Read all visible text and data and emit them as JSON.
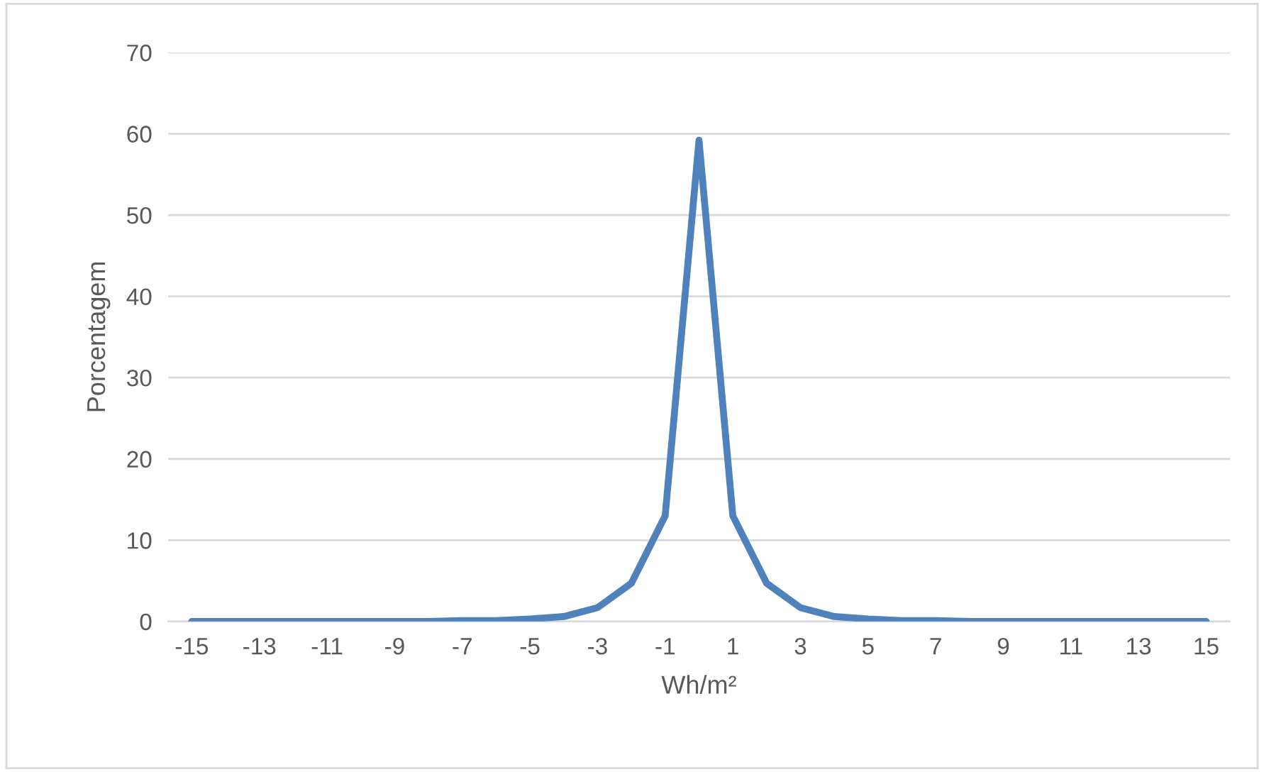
{
  "chart_data": {
    "type": "line",
    "xlabel": "Wh/m²",
    "ylabel": "Porcentagem",
    "categories": [
      "-15",
      null,
      "-13",
      null,
      "-11",
      null,
      "-9",
      null,
      "-7",
      null,
      "-5",
      null,
      "-3",
      null,
      "-1",
      null,
      "1",
      null,
      "3",
      null,
      "5",
      null,
      "7",
      null,
      "9",
      null,
      "11",
      null,
      "13",
      null,
      "15"
    ],
    "series": [
      {
        "color": "#4f81bd",
        "values": [
          0,
          0,
          0,
          0,
          0,
          0,
          0,
          0,
          0.1,
          0.1,
          0.3,
          0.6,
          1.7,
          4.7,
          13,
          59.2,
          13,
          4.7,
          1.7,
          0.6,
          0.3,
          0.1,
          0.1,
          0,
          0,
          0,
          0,
          0,
          0,
          0,
          0
        ]
      }
    ],
    "ylim": [
      0,
      70
    ],
    "yticks": [
      0,
      10,
      20,
      30,
      40,
      50,
      60,
      70
    ],
    "grid": "y",
    "legend": false,
    "marker": "none",
    "line_style": "solid"
  }
}
